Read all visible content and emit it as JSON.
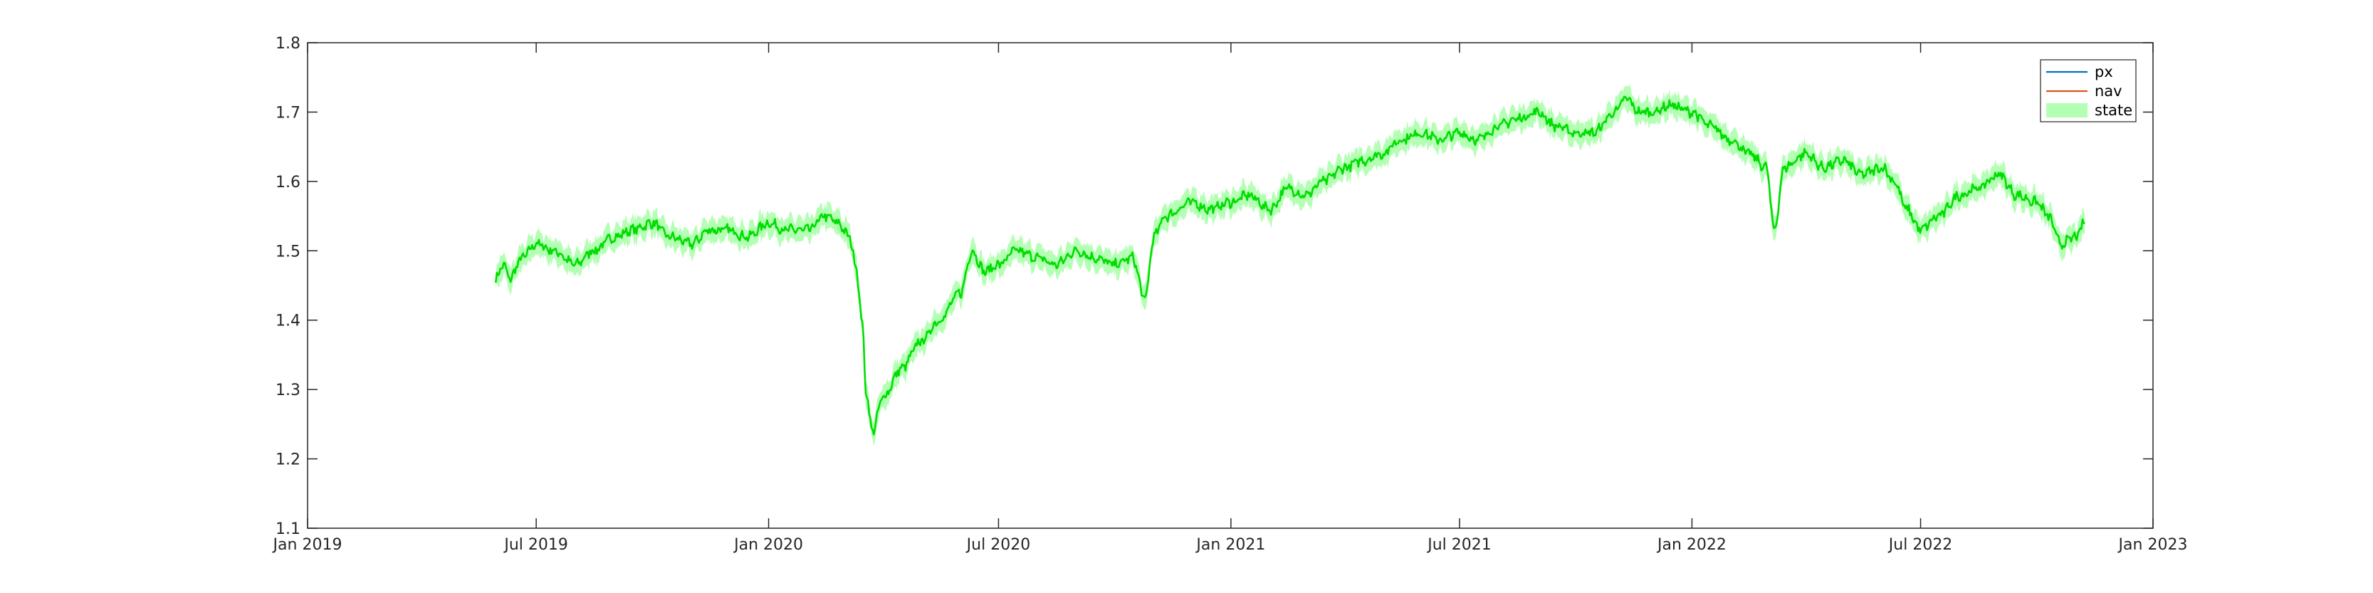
{
  "chart_data": {
    "type": "line",
    "title": "",
    "xlabel": "",
    "ylabel": "",
    "xlim": [
      "2019-01-01",
      "2023-01-01"
    ],
    "ylim": [
      1.1,
      1.8
    ],
    "x_ticks": [
      "2019-01-01",
      "2019-07-01",
      "2020-01-01",
      "2020-07-01",
      "2021-01-01",
      "2021-07-01",
      "2022-01-01",
      "2022-07-01",
      "2023-01-01"
    ],
    "x_tick_labels": [
      "Jan 2019",
      "Jul 2019",
      "Jan 2020",
      "Jul 2020",
      "Jan 2021",
      "Jul 2021",
      "Jan 2022",
      "Jul 2022",
      "Jan 2023"
    ],
    "y_ticks": [
      1.1,
      1.2,
      1.3,
      1.4,
      1.5,
      1.6,
      1.7,
      1.8
    ],
    "y_tick_labels": [
      "1.1",
      "1.2",
      "1.3",
      "1.4",
      "1.5",
      "1.6",
      "1.7",
      "1.8"
    ],
    "grid": false,
    "legend": {
      "placement": "top-right",
      "entries": [
        {
          "label": "px",
          "color": "#0072BD",
          "style": "line"
        },
        {
          "label": "nav",
          "color": "#D95319",
          "style": "line"
        },
        {
          "label": "state",
          "color": "#b3ffb3",
          "style": "patch"
        }
      ]
    },
    "state_line_color": "#00dd00",
    "state_band_color": "#b3ffb3",
    "band_halfwidth": 0.015,
    "series": [
      {
        "name": "state",
        "x": [
          "2019-05-30",
          "2019-06-05",
          "2019-06-10",
          "2019-06-20",
          "2019-07-01",
          "2019-07-15",
          "2019-08-01",
          "2019-08-15",
          "2019-09-01",
          "2019-09-15",
          "2019-10-01",
          "2019-10-15",
          "2019-11-01",
          "2019-11-15",
          "2019-12-01",
          "2019-12-15",
          "2020-01-01",
          "2020-01-15",
          "2020-02-01",
          "2020-02-15",
          "2020-02-25",
          "2020-03-05",
          "2020-03-10",
          "2020-03-15",
          "2020-03-18",
          "2020-03-23",
          "2020-04-01",
          "2020-04-15",
          "2020-05-01",
          "2020-05-15",
          "2020-06-01",
          "2020-06-10",
          "2020-06-20",
          "2020-07-01",
          "2020-07-15",
          "2020-08-01",
          "2020-08-15",
          "2020-09-01",
          "2020-09-15",
          "2020-10-01",
          "2020-10-15",
          "2020-10-25",
          "2020-11-01",
          "2020-11-10",
          "2020-12-01",
          "2020-12-15",
          "2021-01-01",
          "2021-01-15",
          "2021-02-01",
          "2021-02-15",
          "2021-03-01",
          "2021-03-15",
          "2021-04-01",
          "2021-04-15",
          "2021-05-01",
          "2021-05-15",
          "2021-06-01",
          "2021-06-15",
          "2021-07-01",
          "2021-07-15",
          "2021-08-01",
          "2021-08-15",
          "2021-09-01",
          "2021-09-15",
          "2021-10-01",
          "2021-10-15",
          "2021-11-01",
          "2021-11-10",
          "2021-11-20",
          "2021-12-01",
          "2021-12-15",
          "2022-01-01",
          "2022-01-15",
          "2022-02-01",
          "2022-02-15",
          "2022-03-01",
          "2022-03-07",
          "2022-03-15",
          "2022-04-01",
          "2022-04-15",
          "2022-05-01",
          "2022-05-15",
          "2022-06-01",
          "2022-06-10",
          "2022-06-20",
          "2022-07-01",
          "2022-07-15",
          "2022-08-01",
          "2022-08-15",
          "2022-09-01",
          "2022-09-15",
          "2022-10-01",
          "2022-10-10",
          "2022-10-20",
          "2022-11-01",
          "2022-11-08"
        ],
        "y": [
          1.46,
          1.48,
          1.46,
          1.49,
          1.51,
          1.5,
          1.48,
          1.5,
          1.52,
          1.53,
          1.54,
          1.52,
          1.51,
          1.53,
          1.53,
          1.52,
          1.54,
          1.53,
          1.53,
          1.55,
          1.54,
          1.52,
          1.48,
          1.4,
          1.3,
          1.24,
          1.29,
          1.33,
          1.37,
          1.4,
          1.44,
          1.5,
          1.47,
          1.48,
          1.5,
          1.49,
          1.48,
          1.5,
          1.49,
          1.48,
          1.49,
          1.43,
          1.52,
          1.55,
          1.57,
          1.56,
          1.57,
          1.58,
          1.56,
          1.59,
          1.58,
          1.6,
          1.62,
          1.63,
          1.64,
          1.66,
          1.67,
          1.66,
          1.67,
          1.66,
          1.68,
          1.69,
          1.7,
          1.68,
          1.67,
          1.67,
          1.7,
          1.72,
          1.7,
          1.7,
          1.71,
          1.7,
          1.68,
          1.66,
          1.64,
          1.62,
          1.53,
          1.62,
          1.64,
          1.62,
          1.63,
          1.61,
          1.62,
          1.6,
          1.56,
          1.53,
          1.55,
          1.58,
          1.59,
          1.61,
          1.58,
          1.57,
          1.55,
          1.51,
          1.52,
          1.54
        ]
      }
    ]
  }
}
